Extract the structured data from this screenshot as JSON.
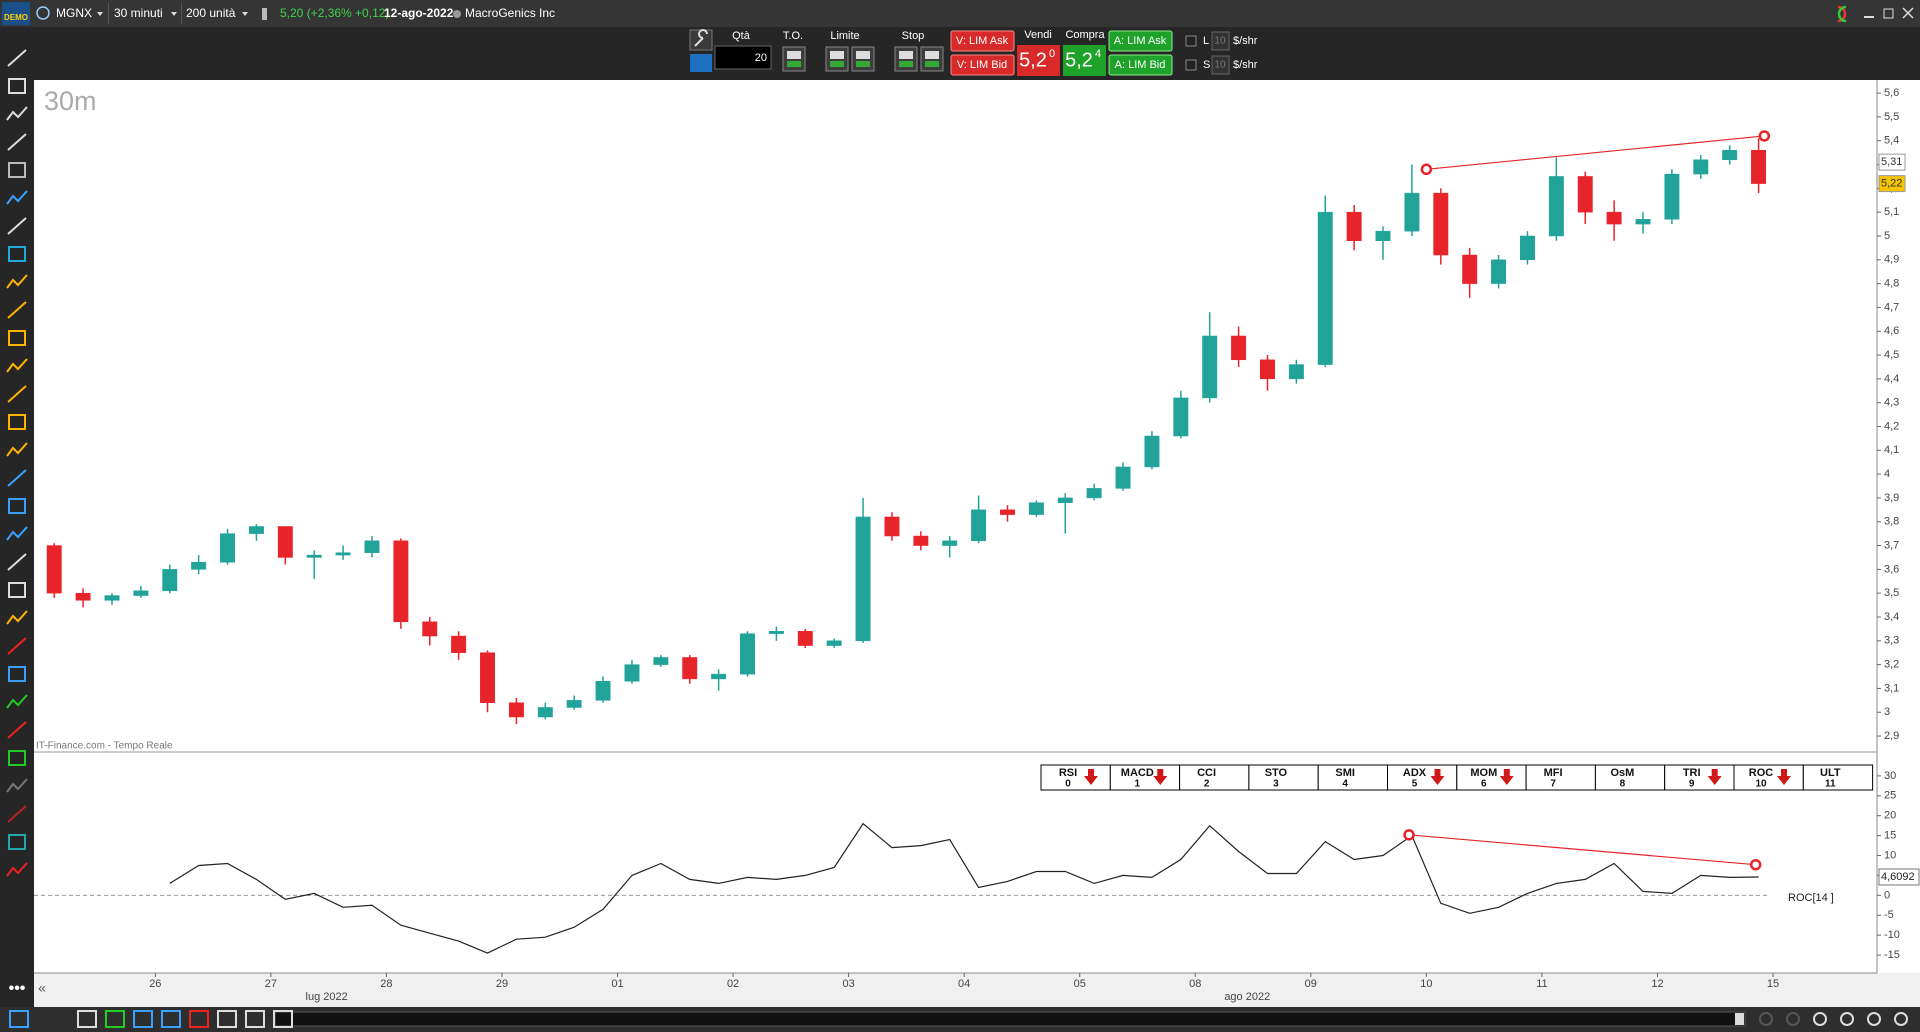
{
  "toolbar": {
    "logo": "DEMO",
    "symbol": "MGNX",
    "timeframe": "30 minuti",
    "quantity": "200 unità",
    "quote": "5,20 (+2,36% +0,12)",
    "date": "12-ago-2022",
    "company": "MacroGenics Inc"
  },
  "order_panel": {
    "qty_label": "Qtà",
    "qty": "20",
    "to_label": "T.O.",
    "limit_label": "Limite",
    "stop_label": "Stop",
    "sell_lim_ask": "V: LIM Ask",
    "sell_lim_bid": "V: LIM Bid",
    "sell_label": "Vendi",
    "sell_price": "5,2",
    "sell_price_sup": "0",
    "buy_label": "Compra",
    "buy_price": "5,2",
    "buy_price_sup": "4",
    "buy_lim_ask": "A: LIM Ask",
    "buy_lim_bid": "A: LIM Bid",
    "long_label": "L",
    "long_qty": "10",
    "long_unit": "$/shr",
    "short_label": "S",
    "short_qty": "10",
    "short_unit": "$/shr"
  },
  "indicator_tabs": [
    {
      "name": "RSI",
      "key": "0",
      "signal": "down"
    },
    {
      "name": "MACD",
      "key": "1",
      "signal": "down"
    },
    {
      "name": "CCI",
      "key": "2"
    },
    {
      "name": "STO",
      "key": "3"
    },
    {
      "name": "SMI",
      "key": "4"
    },
    {
      "name": "ADX",
      "key": "5",
      "signal": "down"
    },
    {
      "name": "MOM",
      "key": "6",
      "signal": "down"
    },
    {
      "name": "MFI",
      "key": "7"
    },
    {
      "name": "OsM",
      "key": "8"
    },
    {
      "name": "TRI",
      "key": "9",
      "signal": "down"
    },
    {
      "name": "ROC",
      "key": "10",
      "signal": "down"
    },
    {
      "name": "ULT",
      "key": "11"
    }
  ],
  "chart_data": [
    {
      "type": "candlestick",
      "title": "30m",
      "source": "IT-Finance.com - Tempo Reale",
      "up_color": "#22a39a",
      "down_color": "#e8242b",
      "open": [
        3.7,
        3.5,
        3.47,
        3.49,
        3.51,
        3.6,
        3.63,
        3.75,
        3.78,
        3.65,
        3.66,
        3.67,
        3.72,
        3.38,
        3.32,
        3.25,
        3.04,
        2.98,
        3.02,
        3.05,
        3.13,
        3.2,
        3.23,
        3.14,
        3.16,
        3.33,
        3.34,
        3.28,
        3.3,
        3.82,
        3.74,
        3.7,
        3.72,
        3.85,
        3.83,
        3.88,
        3.9,
        3.94,
        4.03,
        4.16,
        4.32,
        4.58,
        4.48,
        4.4,
        4.46,
        5.1,
        4.98,
        5.02,
        5.18,
        4.92,
        4.8,
        4.9,
        5.0,
        5.25,
        5.1,
        5.05,
        5.07,
        5.26,
        5.32,
        5.36
      ],
      "high": [
        3.71,
        3.52,
        3.5,
        3.53,
        3.62,
        3.66,
        3.77,
        3.79,
        3.78,
        3.68,
        3.7,
        3.74,
        3.73,
        3.4,
        3.34,
        3.26,
        3.06,
        3.04,
        3.07,
        3.15,
        3.22,
        3.24,
        3.24,
        3.18,
        3.34,
        3.36,
        3.35,
        3.31,
        3.9,
        3.84,
        3.76,
        3.74,
        3.91,
        3.87,
        3.89,
        3.92,
        3.96,
        4.05,
        4.18,
        4.35,
        4.68,
        4.62,
        4.5,
        4.48,
        5.17,
        5.13,
        5.04,
        5.3,
        5.2,
        4.95,
        4.92,
        5.02,
        5.33,
        5.27,
        5.15,
        5.1,
        5.28,
        5.34,
        5.38,
        5.41
      ],
      "low": [
        3.48,
        3.44,
        3.45,
        3.48,
        3.5,
        3.58,
        3.62,
        3.72,
        3.62,
        3.56,
        3.64,
        3.65,
        3.35,
        3.28,
        3.22,
        3.0,
        2.95,
        2.97,
        3.01,
        3.04,
        3.12,
        3.19,
        3.12,
        3.09,
        3.15,
        3.3,
        3.27,
        3.27,
        3.29,
        3.72,
        3.68,
        3.65,
        3.71,
        3.8,
        3.82,
        3.75,
        3.89,
        3.93,
        4.02,
        4.15,
        4.3,
        4.45,
        4.35,
        4.38,
        4.45,
        4.94,
        4.9,
        5.0,
        4.88,
        4.74,
        4.78,
        4.88,
        4.98,
        5.05,
        4.98,
        5.01,
        5.05,
        5.24,
        5.3,
        5.18
      ],
      "close": [
        3.5,
        3.47,
        3.49,
        3.51,
        3.6,
        3.63,
        3.75,
        3.78,
        3.65,
        3.66,
        3.67,
        3.72,
        3.38,
        3.32,
        3.25,
        3.04,
        2.98,
        3.02,
        3.05,
        3.13,
        3.2,
        3.23,
        3.14,
        3.16,
        3.33,
        3.34,
        3.28,
        3.3,
        3.82,
        3.74,
        3.7,
        3.72,
        3.85,
        3.83,
        3.88,
        3.9,
        3.94,
        4.03,
        4.16,
        4.32,
        4.58,
        4.48,
        4.4,
        4.46,
        5.1,
        4.98,
        5.02,
        5.18,
        4.92,
        4.8,
        4.9,
        5.0,
        5.25,
        5.1,
        5.05,
        5.07,
        5.26,
        5.32,
        5.36,
        5.22
      ],
      "xlim": [
        -0.2,
        63.6
      ],
      "ylim": [
        2.833,
        5.655
      ],
      "yticks": [
        {
          "value": 2.9,
          "label": "2,9"
        },
        3,
        {
          "value": 3.1,
          "label": "3,1"
        },
        {
          "value": 3.2,
          "label": "3,2"
        },
        {
          "value": 3.3,
          "label": "3,3"
        },
        {
          "value": 3.4,
          "label": "3,4"
        },
        {
          "value": 3.5,
          "label": "3,5"
        },
        {
          "value": 3.6,
          "label": "3,6"
        },
        {
          "value": 3.7,
          "label": "3,7"
        },
        {
          "value": 3.8,
          "label": "3,8"
        },
        {
          "value": 3.9,
          "label": "3,9"
        },
        4,
        {
          "value": 4.1,
          "label": "4,1"
        },
        {
          "value": 4.2,
          "label": "4,2"
        },
        {
          "value": 4.3,
          "label": "4,3"
        },
        {
          "value": 4.4,
          "label": "4,4"
        },
        {
          "value": 4.5,
          "label": "4,5"
        },
        {
          "value": 4.6,
          "label": "4,6"
        },
        {
          "value": 4.7,
          "label": "4,7"
        },
        {
          "value": 4.8,
          "label": "4,8"
        },
        {
          "value": 4.9,
          "label": "4,9"
        },
        5,
        {
          "value": 5.1,
          "label": "5,1"
        },
        {
          "value": 5.2,
          "label": "5,2"
        },
        {
          "value": 5.3,
          "label": "5,3"
        },
        {
          "value": 5.4,
          "label": "5,4"
        },
        {
          "value": 5.5,
          "label": "5,5"
        },
        {
          "value": 5.6,
          "label": "5,6"
        }
      ],
      "xticks": [
        {
          "value": 4,
          "label": "26"
        },
        {
          "value": 8,
          "label": "27"
        },
        {
          "value": 12,
          "label": "28"
        },
        {
          "value": 16,
          "label": "29"
        },
        {
          "value": 20,
          "label": "01"
        },
        {
          "value": 24,
          "label": "02"
        },
        {
          "value": 28,
          "label": "03"
        },
        {
          "value": 32,
          "label": "04"
        },
        {
          "value": 36,
          "label": "05"
        },
        {
          "value": 40,
          "label": "08"
        },
        {
          "value": 44,
          "label": "09"
        },
        {
          "value": 48,
          "label": "10"
        },
        {
          "value": 52,
          "label": "11"
        },
        {
          "value": 56,
          "label": "12"
        },
        {
          "value": 60,
          "label": "15"
        }
      ],
      "month_ticks": [
        {
          "value": 9.93,
          "label": "lug 2022"
        },
        {
          "value": 41.8,
          "label": "ago 2022"
        }
      ],
      "price_markers": [
        {
          "value": 5.31,
          "label": "5,31",
          "color": "#ffffff"
        },
        {
          "value": 5.22,
          "label": "5,22",
          "color": "#f5c400"
        }
      ],
      "trendline": {
        "x": [
          48,
          59.7
        ],
        "y": [
          5.28,
          5.42
        ],
        "color": "#e8242b"
      }
    },
    {
      "type": "line",
      "series": [
        {
          "name": "ROC[14 ]",
          "color": "#222222",
          "values": [
            null,
            null,
            null,
            null,
            3,
            7.5,
            8,
            4,
            -1,
            0.5,
            -3,
            -2.5,
            -7.5,
            -9.5,
            -11.5,
            -14.5,
            -11,
            -10.5,
            -8,
            -3.5,
            5,
            8,
            4,
            3,
            4.5,
            4,
            5,
            7,
            18,
            12,
            12.5,
            14,
            2,
            3.5,
            6,
            6,
            3,
            5,
            4.5,
            9,
            17.5,
            11,
            5.5,
            5.5,
            13.5,
            9,
            10,
            15,
            -2,
            -4.5,
            -3,
            0.5,
            3,
            4,
            8,
            1,
            0.5,
            5,
            4.5,
            4.6092
          ]
        }
      ],
      "xlim": [
        -0.2,
        63.6
      ],
      "ylim": [
        -19.5,
        36
      ],
      "yticks": [
        -15,
        -10,
        -5,
        0,
        5,
        10,
        15,
        20,
        25,
        30
      ],
      "reference_line": 0,
      "markers": [
        {
          "value": 4.6092,
          "label": "4,6092"
        }
      ],
      "trendline": {
        "x": [
          47.4,
          59.4
        ],
        "y": [
          15.2,
          7.7
        ],
        "color": "#e8242b"
      }
    }
  ]
}
